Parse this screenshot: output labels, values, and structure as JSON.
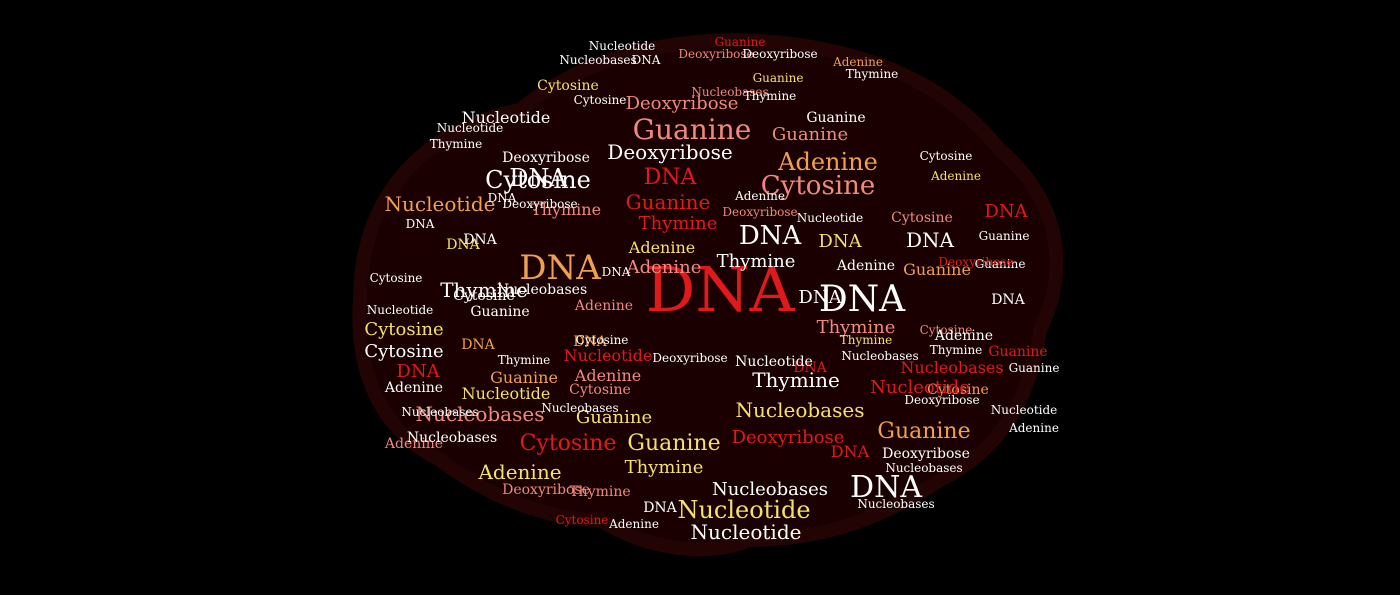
{
  "image": {
    "title": "",
    "description_words_in_cloud": [
      "DNA",
      "Adenine",
      "Guanine",
      "Cytosine",
      "Thymine",
      "Nucleotide",
      "Nucleobases",
      "Deoxyribose"
    ]
  },
  "colors": {
    "background": "#000000",
    "blob": "#1a0000",
    "red": "#e0191b",
    "pink": "#f08a7d",
    "orange": "#f0a050",
    "yellow": "#f5e06a",
    "cream": "#fff6df",
    "white": "#ffffff"
  },
  "words": [
    {
      "t": "DNA",
      "c": "red"
    },
    {
      "t": "DNA",
      "c": "white"
    },
    {
      "t": "DNA",
      "c": "orange"
    },
    {
      "t": "DNA",
      "c": "white"
    },
    {
      "t": "DNA",
      "c": "red"
    },
    {
      "t": "DNA",
      "c": "white"
    },
    {
      "t": "DNA",
      "c": "white"
    },
    {
      "t": "DNA",
      "c": "white"
    },
    {
      "t": "DNA",
      "c": "yellow"
    },
    {
      "t": "DNA",
      "c": "red"
    },
    {
      "t": "DNA",
      "c": "white"
    },
    {
      "t": "DNA",
      "c": "yellow"
    },
    {
      "t": "DNA",
      "c": "orange"
    },
    {
      "t": "DNA",
      "c": "white"
    },
    {
      "t": "DNA",
      "c": "red"
    },
    {
      "t": "DNA",
      "c": "white"
    },
    {
      "t": "DNA",
      "c": "red"
    },
    {
      "t": "DNA",
      "c": "white"
    },
    {
      "t": "DNA",
      "c": "red"
    },
    {
      "t": "DNA",
      "c": "orange"
    },
    {
      "t": "DNA",
      "c": "white"
    },
    {
      "t": "Guanine",
      "c": "pink"
    },
    {
      "t": "Guanine",
      "c": "pink"
    },
    {
      "t": "Guanine",
      "c": "red"
    },
    {
      "t": "Guanine",
      "c": "orange"
    },
    {
      "t": "Guanine",
      "c": "white"
    },
    {
      "t": "Guanine",
      "c": "orange"
    },
    {
      "t": "Guanine",
      "c": "yellow"
    },
    {
      "t": "Guanine",
      "c": "yellow"
    },
    {
      "t": "Guanine",
      "c": "red"
    },
    {
      "t": "Guanine",
      "c": "orange"
    },
    {
      "t": "Guanine",
      "c": "white"
    },
    {
      "t": "Guanine",
      "c": "white"
    },
    {
      "t": "Cytosine",
      "c": "pink"
    },
    {
      "t": "Cytosine",
      "c": "white"
    },
    {
      "t": "Cytosine",
      "c": "yellow"
    },
    {
      "t": "Cytosine",
      "c": "white"
    },
    {
      "t": "Cytosine",
      "c": "pink"
    },
    {
      "t": "Cytosine",
      "c": "white"
    },
    {
      "t": "Cytosine",
      "c": "red"
    },
    {
      "t": "Cytosine",
      "c": "pink"
    },
    {
      "t": "Cytosine",
      "c": "orange"
    },
    {
      "t": "Cytosine",
      "c": "pink"
    },
    {
      "t": "Cytosine",
      "c": "white"
    },
    {
      "t": "Adenine",
      "c": "orange"
    },
    {
      "t": "Adenine",
      "c": "pink"
    },
    {
      "t": "Adenine",
      "c": "yellow"
    },
    {
      "t": "Adenine",
      "c": "pink"
    },
    {
      "t": "Adenine",
      "c": "yellow"
    },
    {
      "t": "Adenine",
      "c": "white"
    },
    {
      "t": "Adenine",
      "c": "pink"
    },
    {
      "t": "Adenine",
      "c": "white"
    },
    {
      "t": "Adenine",
      "c": "white"
    },
    {
      "t": "Adenine",
      "c": "pink"
    },
    {
      "t": "Adenine",
      "c": "white"
    },
    {
      "t": "Thymine",
      "c": "white"
    },
    {
      "t": "Thymine",
      "c": "red"
    },
    {
      "t": "Thymine",
      "c": "white"
    },
    {
      "t": "Thymine",
      "c": "pink"
    },
    {
      "t": "Thymine",
      "c": "white"
    },
    {
      "t": "Thymine",
      "c": "yellow"
    },
    {
      "t": "Thymine",
      "c": "pink"
    },
    {
      "t": "Thymine",
      "c": "pink"
    },
    {
      "t": "Thymine",
      "c": "white"
    },
    {
      "t": "Thymine",
      "c": "white"
    },
    {
      "t": "Nucleotide",
      "c": "orange"
    },
    {
      "t": "Nucleotide",
      "c": "white"
    },
    {
      "t": "Nucleotide",
      "c": "yellow"
    },
    {
      "t": "Nucleotide",
      "c": "yellow"
    },
    {
      "t": "Nucleotide",
      "c": "red"
    },
    {
      "t": "Nucleotide",
      "c": "white"
    },
    {
      "t": "Nucleotide",
      "c": "red"
    },
    {
      "t": "Nucleotide",
      "c": "white"
    },
    {
      "t": "Nucleotide",
      "c": "white"
    },
    {
      "t": "Nucleotide",
      "c": "white"
    },
    {
      "t": "Nucleobases",
      "c": "yellow"
    },
    {
      "t": "Nucleobases",
      "c": "pink"
    },
    {
      "t": "Nucleobases",
      "c": "white"
    },
    {
      "t": "Nucleobases",
      "c": "white"
    },
    {
      "t": "Nucleobases",
      "c": "white"
    },
    {
      "t": "Nucleobases",
      "c": "red"
    },
    {
      "t": "Nucleobases",
      "c": "white"
    },
    {
      "t": "Nucleobases",
      "c": "white"
    },
    {
      "t": "Nucleobases",
      "c": "white"
    },
    {
      "t": "Deoxyribose",
      "c": "pink"
    },
    {
      "t": "Deoxyribose",
      "c": "white"
    },
    {
      "t": "Deoxyribose",
      "c": "red"
    },
    {
      "t": "Deoxyribose",
      "c": "pink"
    },
    {
      "t": "Deoxyribose",
      "c": "white"
    },
    {
      "t": "Deoxyribose",
      "c": "white"
    },
    {
      "t": "Deoxyribose",
      "c": "red"
    },
    {
      "t": "Deoxyribose",
      "c": "pink"
    },
    {
      "t": "Deoxyribose",
      "c": "white"
    },
    {
      "t": "Deoxyribose",
      "c": "white"
    },
    {
      "t": "Guanine",
      "c": "red"
    },
    {
      "t": "Thymine",
      "c": "white"
    },
    {
      "t": "Cytosine",
      "c": "white"
    },
    {
      "t": "Adenine",
      "c": "white"
    },
    {
      "t": "Nucleobases",
      "c": "white"
    },
    {
      "t": "Deoxyribose",
      "c": "white"
    },
    {
      "t": "Nucleotide",
      "c": "white"
    },
    {
      "t": "DNA",
      "c": "white"
    },
    {
      "t": "Cytosine",
      "c": "yellow"
    },
    {
      "t": "Guanine",
      "c": "yellow"
    },
    {
      "t": "Thymine",
      "c": "white"
    },
    {
      "t": "Adenine",
      "c": "orange"
    },
    {
      "t": "Nucleobases",
      "c": "pink"
    },
    {
      "t": "DNA",
      "c": "white"
    },
    {
      "t": "Cytosine",
      "c": "white"
    },
    {
      "t": "Adenine",
      "c": "yellow"
    },
    {
      "t": "Guanine",
      "c": "white"
    },
    {
      "t": "Thymine",
      "c": "yellow"
    },
    {
      "t": "Deoxyribose",
      "c": "pink"
    },
    {
      "t": "Nucleobases",
      "c": "white"
    },
    {
      "t": "Nucleotide",
      "c": "white"
    },
    {
      "t": "Cytosine",
      "c": "white"
    },
    {
      "t": "DNA",
      "c": "white"
    },
    {
      "t": "Adenine",
      "c": "white"
    },
    {
      "t": "Thymine",
      "c": "white"
    },
    {
      "t": "Guanine",
      "c": "white"
    },
    {
      "t": "Nucleobases",
      "c": "white"
    },
    {
      "t": "Cytosine",
      "c": "red"
    },
    {
      "t": "Deoxyribose",
      "c": "white"
    },
    {
      "t": "Nucleotide",
      "c": "white"
    }
  ]
}
